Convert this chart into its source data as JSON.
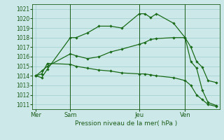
{
  "background_color": "#cde8e8",
  "grid_color": "#9ecece",
  "line_color": "#1a6b1a",
  "text_color": "#1a5c1a",
  "xlabel": "Pression niveau de la mer( hPa )",
  "ylim": [
    1010.5,
    1021.5
  ],
  "yticks": [
    1011,
    1012,
    1013,
    1014,
    1015,
    1016,
    1017,
    1018,
    1019,
    1020,
    1021
  ],
  "day_labels": [
    "Mer",
    "Sam",
    "Jeu",
    "Ven"
  ],
  "day_positions": [
    0,
    3,
    9,
    13
  ],
  "xlim": [
    -0.3,
    16.0
  ],
  "series1_x": [
    0,
    0.5,
    1.0,
    3,
    3.5,
    4.5,
    5.5,
    6.5,
    7.5,
    9,
    9.5,
    10,
    10.5,
    12,
    13,
    13.5,
    14,
    14.5,
    15,
    15.7
  ],
  "series1_y": [
    1014.0,
    1013.8,
    1014.7,
    1018.0,
    1018.0,
    1018.5,
    1019.2,
    1019.2,
    1019.0,
    1020.5,
    1020.5,
    1020.1,
    1020.5,
    1019.5,
    1018.0,
    1017.0,
    1015.5,
    1014.9,
    1013.5,
    1013.3
  ],
  "series2_x": [
    0,
    0.5,
    1.0,
    3,
    3.5,
    4.5,
    5.5,
    6.5,
    7.5,
    9,
    9.5,
    10,
    10.5,
    12,
    13,
    13.5,
    14,
    14.5,
    15,
    15.7
  ],
  "series2_y": [
    1014.0,
    1014.5,
    1015.0,
    1016.3,
    1016.1,
    1015.8,
    1016.0,
    1016.5,
    1016.8,
    1017.3,
    1017.5,
    1017.8,
    1017.9,
    1018.0,
    1018.0,
    1015.5,
    1014.8,
    1012.5,
    1011.2,
    1010.9
  ],
  "series3_x": [
    0,
    0.5,
    1.0,
    3,
    3.5,
    4.5,
    5.5,
    6.5,
    7.5,
    9,
    9.5,
    10,
    10.5,
    12,
    13,
    13.5,
    14,
    14.5,
    15,
    15.7
  ],
  "series3_y": [
    1014.0,
    1014.2,
    1015.3,
    1015.2,
    1015.0,
    1014.8,
    1014.6,
    1014.5,
    1014.3,
    1014.2,
    1014.2,
    1014.1,
    1014.0,
    1013.8,
    1013.5,
    1013.0,
    1012.0,
    1011.5,
    1011.0,
    1010.8
  ]
}
